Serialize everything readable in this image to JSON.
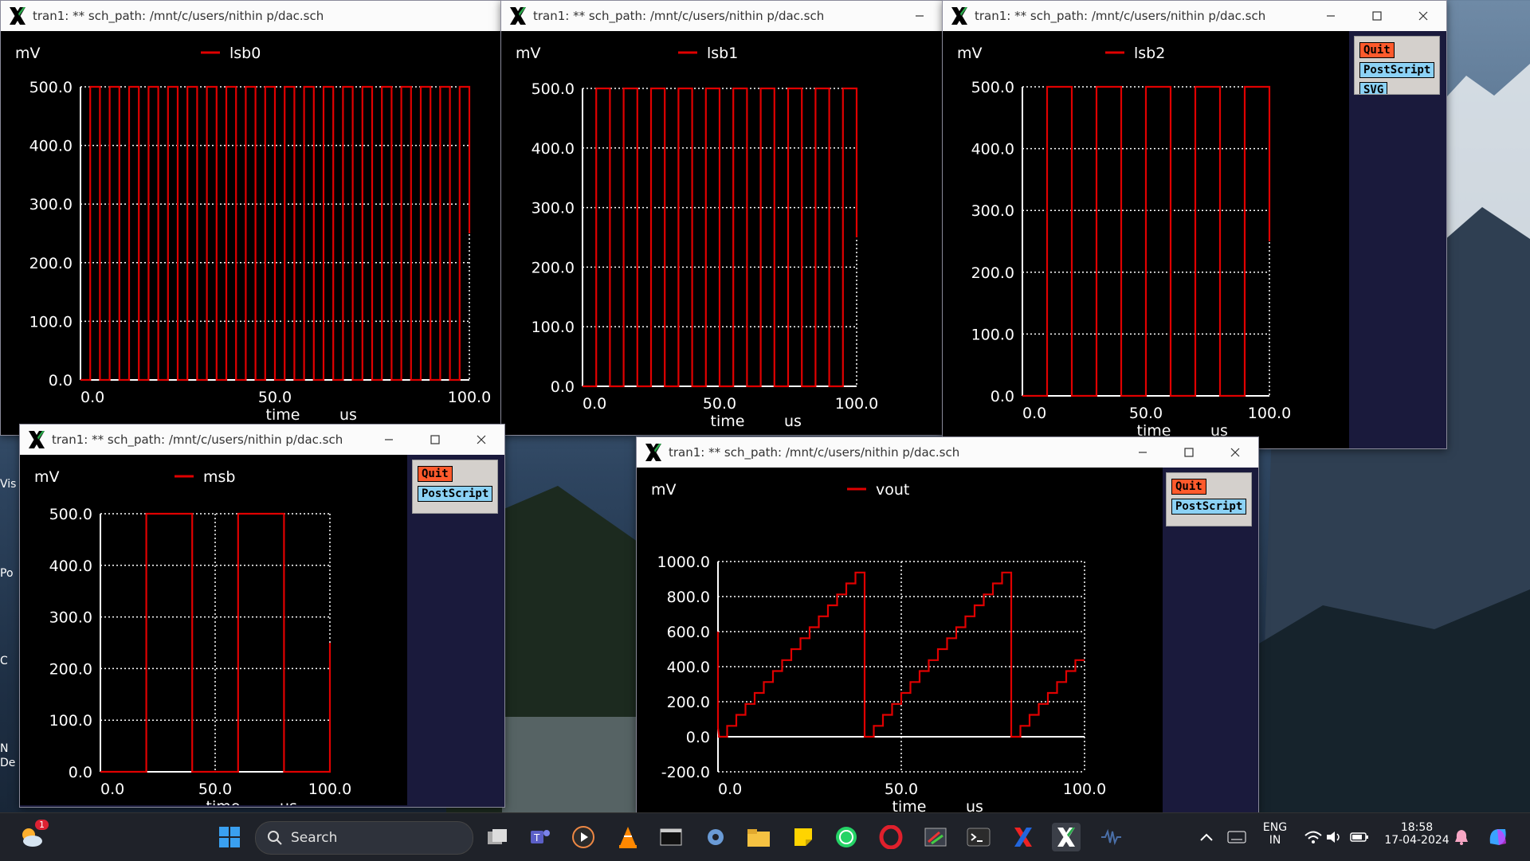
{
  "desktop": {
    "edge_labels": [
      "Vis",
      "Po",
      "C",
      "N",
      "De"
    ]
  },
  "colors": {
    "trace": "#e00000",
    "grid": "#ffffff",
    "plot_bg": "#000000",
    "window_bg": "#1a1a3c",
    "quit_bg": "#ff5a2c",
    "ps_bg": "#8cd2f5"
  },
  "windows": [
    {
      "id": "lsb0",
      "title": "tran1: ** sch_path: /mnt/c/users/nithin p/dac.sch",
      "controls": false,
      "buttons": [],
      "chart_data": {
        "type": "line",
        "ylabel": "mV",
        "xlabel": "time",
        "xunit": "us",
        "legend": "lsb0",
        "xlim": [
          0,
          100
        ],
        "ylim": [
          0,
          500
        ],
        "xticks": [
          "0.0",
          "50.0",
          "100.0"
        ],
        "yticks": [
          "0.0",
          "100.0",
          "200.0",
          "300.0",
          "400.0",
          "500.0"
        ],
        "series": [
          {
            "name": "lsb0",
            "period": 5,
            "high": 500,
            "low": 0,
            "t_start": 2.5,
            "end_value": 250
          }
        ]
      }
    },
    {
      "id": "lsb1",
      "title": "tran1: ** sch_path: /mnt/c/users/nithin p/dac.sch",
      "controls": true,
      "buttons": [],
      "chart_data": {
        "type": "line",
        "ylabel": "mV",
        "xlabel": "time",
        "xunit": "us",
        "legend": "lsb1",
        "xlim": [
          0,
          100
        ],
        "ylim": [
          0,
          500
        ],
        "xticks": [
          "0.0",
          "50.0",
          "100.0"
        ],
        "yticks": [
          "0.0",
          "100.0",
          "200.0",
          "300.0",
          "400.0",
          "500.0"
        ],
        "series": [
          {
            "name": "lsb1",
            "period": 10,
            "high": 500,
            "low": 0,
            "t_start": 5,
            "end_value": 250
          }
        ]
      }
    },
    {
      "id": "lsb2",
      "title": "tran1: ** sch_path: /mnt/c/users/nithin p/dac.sch",
      "controls": true,
      "buttons": [
        "Quit",
        "PostScript",
        "SVG"
      ],
      "chart_data": {
        "type": "line",
        "ylabel": "mV",
        "xlabel": "time",
        "xunit": "us",
        "legend": "lsb2",
        "xlim": [
          0,
          100
        ],
        "ylim": [
          0,
          500
        ],
        "xticks": [
          "0.0",
          "50.0",
          "100.0"
        ],
        "yticks": [
          "0.0",
          "100.0",
          "200.0",
          "300.0",
          "400.0",
          "500.0"
        ],
        "series": [
          {
            "name": "lsb2",
            "period": 20,
            "high": 500,
            "low": 0,
            "t_start": 10,
            "end_value": 250
          }
        ]
      }
    },
    {
      "id": "msb",
      "title": "tran1: ** sch_path: /mnt/c/users/nithin p/dac.sch",
      "controls": true,
      "buttons": [
        "Quit",
        "PostScript"
      ],
      "chart_data": {
        "type": "line",
        "ylabel": "mV",
        "xlabel": "time",
        "xunit": "us",
        "legend": "msb",
        "xlim": [
          0,
          100
        ],
        "ylim": [
          0,
          500
        ],
        "xticks": [
          "0.0",
          "50.0",
          "100.0"
        ],
        "yticks": [
          "0.0",
          "100.0",
          "200.0",
          "300.0",
          "400.0",
          "500.0"
        ],
        "series": [
          {
            "name": "msb",
            "period": 40,
            "high": 500,
            "low": 0,
            "t_start": 20,
            "end_value": 250
          }
        ]
      }
    },
    {
      "id": "vout",
      "title": "tran1: ** sch_path: /mnt/c/users/nithin p/dac.sch",
      "controls": true,
      "buttons": [
        "Quit",
        "PostScript"
      ],
      "chart_data": {
        "type": "line",
        "ylabel": "mV",
        "xlabel": "time",
        "xunit": "us",
        "legend": "vout",
        "xlim": [
          0,
          100
        ],
        "ylim": [
          -200,
          1000
        ],
        "xticks": [
          "0.0",
          "50.0",
          "100.0"
        ],
        "yticks": [
          "-200.0",
          "0.0",
          "200.0",
          "400.0",
          "600.0",
          "800.0",
          "1000.0"
        ],
        "series": [
          {
            "name": "vout",
            "staircase": true,
            "step": 62.5,
            "levels": 16,
            "dwell": 2.5,
            "period": 40,
            "initial": 600
          }
        ]
      }
    }
  ],
  "taskbar": {
    "search_label": "Search",
    "weather_badge": "1",
    "language": "ENG",
    "region": "IN",
    "time": "18:58",
    "date": "17-04-2024",
    "icons": [
      "weather-icon",
      "start-icon",
      "search-icon",
      "task-view-icon",
      "teams-icon",
      "media-player-icon",
      "vlc-icon",
      "terminal-window-icon",
      "settings-icon",
      "file-explorer-icon",
      "sticky-notes-icon",
      "whatsapp-icon",
      "opera-icon",
      "snipping-tool-icon",
      "terminal-icon",
      "xlaunch-icon",
      "x-server-icon",
      "xschem-icon",
      "chevron-up-icon",
      "keyboard-icon",
      "wifi-icon",
      "volume-icon",
      "battery-icon",
      "notifications-icon",
      "copilot-icon"
    ]
  }
}
